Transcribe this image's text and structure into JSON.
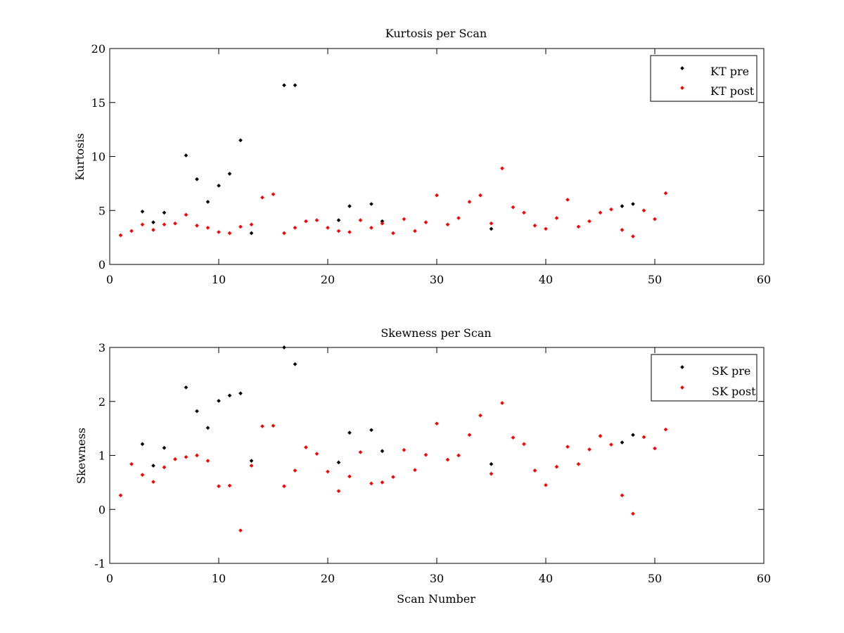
{
  "colors": {
    "pre": "#000000",
    "post": "#ff0000",
    "axis": "#000000",
    "background": "#ffffff"
  },
  "chart_data": [
    {
      "type": "scatter",
      "title": "Kurtosis per Scan",
      "xlabel": "",
      "ylabel": "Kurtosis",
      "xlim": [
        0,
        60
      ],
      "ylim": [
        0,
        20
      ],
      "xticks": [
        0,
        10,
        20,
        30,
        40,
        50,
        60
      ],
      "yticks": [
        0,
        5,
        10,
        15,
        20
      ],
      "grid": false,
      "legend_position": "top-right",
      "series": [
        {
          "name": "KT pre",
          "color": "#000000",
          "points": [
            [
              3,
              4.9
            ],
            [
              4,
              3.9
            ],
            [
              5,
              4.8
            ],
            [
              7,
              10.1
            ],
            [
              8,
              7.9
            ],
            [
              9,
              5.8
            ],
            [
              10,
              7.3
            ],
            [
              11,
              8.4
            ],
            [
              12,
              11.5
            ],
            [
              13,
              2.9
            ],
            [
              16,
              16.6
            ],
            [
              17,
              16.6
            ],
            [
              21,
              4.1
            ],
            [
              22,
              5.4
            ],
            [
              24,
              5.6
            ],
            [
              25,
              4.0
            ],
            [
              35,
              3.3
            ],
            [
              47,
              5.4
            ],
            [
              48,
              5.6
            ]
          ]
        },
        {
          "name": "KT post",
          "color": "#ff0000",
          "points": [
            [
              1,
              2.7
            ],
            [
              2,
              3.1
            ],
            [
              3,
              3.7
            ],
            [
              4,
              3.2
            ],
            [
              5,
              3.7
            ],
            [
              6,
              3.8
            ],
            [
              7,
              4.6
            ],
            [
              8,
              3.6
            ],
            [
              9,
              3.4
            ],
            [
              10,
              3.0
            ],
            [
              11,
              2.9
            ],
            [
              12,
              3.5
            ],
            [
              13,
              3.7
            ],
            [
              14,
              6.2
            ],
            [
              15,
              6.5
            ],
            [
              16,
              2.9
            ],
            [
              17,
              3.4
            ],
            [
              18,
              4.0
            ],
            [
              19,
              4.1
            ],
            [
              20,
              3.4
            ],
            [
              21,
              3.1
            ],
            [
              22,
              3.0
            ],
            [
              23,
              4.1
            ],
            [
              24,
              3.4
            ],
            [
              25,
              3.8
            ],
            [
              26,
              2.9
            ],
            [
              27,
              4.2
            ],
            [
              28,
              3.1
            ],
            [
              29,
              3.9
            ],
            [
              30,
              6.4
            ],
            [
              31,
              3.7
            ],
            [
              32,
              4.3
            ],
            [
              33,
              5.8
            ],
            [
              34,
              6.4
            ],
            [
              35,
              3.8
            ],
            [
              36,
              8.9
            ],
            [
              37,
              5.3
            ],
            [
              38,
              4.8
            ],
            [
              39,
              3.6
            ],
            [
              40,
              3.3
            ],
            [
              41,
              4.3
            ],
            [
              42,
              6.0
            ],
            [
              43,
              3.5
            ],
            [
              44,
              4.0
            ],
            [
              45,
              4.8
            ],
            [
              46,
              5.1
            ],
            [
              47,
              3.2
            ],
            [
              48,
              2.6
            ],
            [
              49,
              5.0
            ],
            [
              50,
              4.2
            ],
            [
              51,
              6.6
            ]
          ]
        }
      ]
    },
    {
      "type": "scatter",
      "title": "Skewness per Scan",
      "xlabel": "Scan Number",
      "ylabel": "Skewness",
      "xlim": [
        0,
        60
      ],
      "ylim": [
        -1,
        3
      ],
      "xticks": [
        0,
        10,
        20,
        30,
        40,
        50,
        60
      ],
      "yticks": [
        -1,
        0,
        1,
        2,
        3
      ],
      "grid": false,
      "legend_position": "top-right",
      "series": [
        {
          "name": "SK pre",
          "color": "#000000",
          "points": [
            [
              3,
              1.21
            ],
            [
              4,
              0.81
            ],
            [
              5,
              1.14
            ],
            [
              7,
              2.26
            ],
            [
              8,
              1.82
            ],
            [
              9,
              1.51
            ],
            [
              10,
              2.01
            ],
            [
              11,
              2.11
            ],
            [
              12,
              2.15
            ],
            [
              13,
              0.9
            ],
            [
              16,
              3.0
            ],
            [
              17,
              2.69
            ],
            [
              21,
              0.87
            ],
            [
              22,
              1.42
            ],
            [
              24,
              1.47
            ],
            [
              25,
              1.08
            ],
            [
              35,
              0.84
            ],
            [
              47,
              1.24
            ],
            [
              48,
              1.38
            ]
          ]
        },
        {
          "name": "SK post",
          "color": "#ff0000",
          "points": [
            [
              1,
              0.26
            ],
            [
              2,
              0.84
            ],
            [
              3,
              0.64
            ],
            [
              4,
              0.51
            ],
            [
              5,
              0.78
            ],
            [
              6,
              0.93
            ],
            [
              7,
              0.97
            ],
            [
              8,
              1.0
            ],
            [
              9,
              0.9
            ],
            [
              10,
              0.43
            ],
            [
              11,
              0.44
            ],
            [
              12,
              -0.39
            ],
            [
              13,
              0.81
            ],
            [
              14,
              1.54
            ],
            [
              15,
              1.55
            ],
            [
              16,
              0.43
            ],
            [
              17,
              0.72
            ],
            [
              18,
              1.15
            ],
            [
              19,
              1.03
            ],
            [
              20,
              0.7
            ],
            [
              21,
              0.34
            ],
            [
              22,
              0.61
            ],
            [
              23,
              1.06
            ],
            [
              24,
              0.48
            ],
            [
              25,
              0.5
            ],
            [
              26,
              0.6
            ],
            [
              27,
              1.1
            ],
            [
              28,
              0.73
            ],
            [
              29,
              1.01
            ],
            [
              30,
              1.59
            ],
            [
              31,
              0.92
            ],
            [
              32,
              1.0
            ],
            [
              33,
              1.38
            ],
            [
              34,
              1.74
            ],
            [
              35,
              0.66
            ],
            [
              36,
              1.97
            ],
            [
              37,
              1.33
            ],
            [
              38,
              1.21
            ],
            [
              39,
              0.72
            ],
            [
              40,
              0.45
            ],
            [
              41,
              0.79
            ],
            [
              42,
              1.16
            ],
            [
              43,
              0.84
            ],
            [
              44,
              1.11
            ],
            [
              45,
              1.36
            ],
            [
              46,
              1.2
            ],
            [
              47,
              0.26
            ],
            [
              48,
              -0.08
            ],
            [
              49,
              1.34
            ],
            [
              50,
              1.13
            ],
            [
              51,
              1.48
            ]
          ]
        }
      ]
    }
  ]
}
